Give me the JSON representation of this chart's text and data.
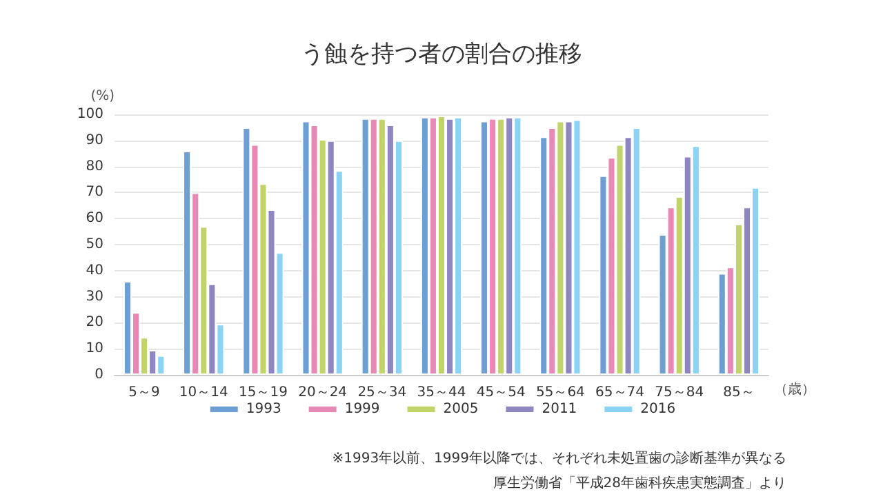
{
  "chart_data": {
    "type": "bar",
    "title": "う蝕を持つ者の割合の推移",
    "xlabel": "（歳）",
    "ylabel": "(%)",
    "categories": [
      "5～9",
      "10～14",
      "15～19",
      "20～24",
      "25～34",
      "35～44",
      "45～54",
      "55～64",
      "65～74",
      "75～84",
      "85～"
    ],
    "series": [
      {
        "name": "1993",
        "color": "#6e9fd4",
        "values": [
          36,
          86,
          95,
          97.5,
          98.5,
          99,
          97.5,
          91.5,
          76.5,
          54,
          39
        ]
      },
      {
        "name": "1999",
        "color": "#e889b5",
        "values": [
          24,
          70,
          88.5,
          96,
          98.5,
          99,
          98.5,
          95,
          83.5,
          64.5,
          41.5
        ]
      },
      {
        "name": "2005",
        "color": "#c0d46a",
        "values": [
          14.5,
          57,
          73.5,
          90.5,
          98.5,
          99.5,
          98.5,
          97.5,
          88.5,
          68.5,
          58
        ]
      },
      {
        "name": "2011",
        "color": "#8e86c0",
        "values": [
          9.5,
          35,
          63.5,
          90,
          96,
          98.5,
          99,
          97.5,
          91.5,
          84,
          64.5
        ]
      },
      {
        "name": "2016",
        "color": "#8ad3f5",
        "values": [
          7.5,
          19.5,
          47,
          78.5,
          90,
          99,
          99,
          98,
          95,
          88,
          72
        ]
      }
    ],
    "ylim": [
      0,
      100
    ],
    "yticks": [
      0,
      10,
      20,
      30,
      40,
      50,
      60,
      70,
      80,
      90,
      100
    ],
    "grid": "y",
    "legend": "bottom",
    "annotations": [
      "※1993年以前、1999年以降では、それぞれ未処置歯の診断基準が異なる",
      "厚生労働省「平成28年歯科疾患実態調査」より"
    ]
  }
}
